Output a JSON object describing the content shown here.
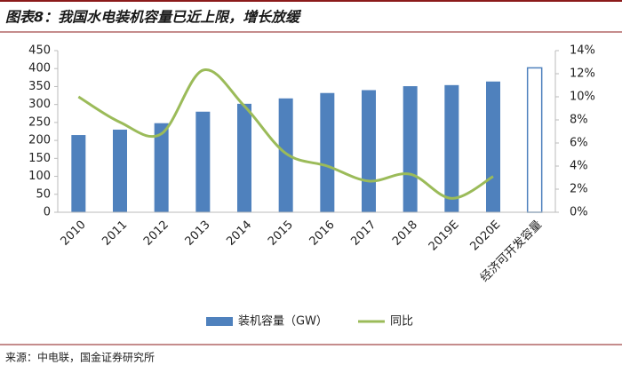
{
  "chart_data": {
    "type": "bar_line",
    "title": "图表8：我国水电装机容量已近上限，增长放缓",
    "source": "来源：中电联，国金证券研究所",
    "categories": [
      "2010",
      "2011",
      "2012",
      "2013",
      "2014",
      "2015",
      "2016",
      "2017",
      "2018",
      "2019E",
      "2020E",
      "经济可开发容量"
    ],
    "series": [
      {
        "name": "装机容量（GW）",
        "type": "bar",
        "color": "#4f81bd",
        "hollow": [
          false,
          false,
          false,
          false,
          false,
          false,
          false,
          false,
          false,
          false,
          false,
          true
        ],
        "values": [
          215,
          230,
          248,
          280,
          302,
          317,
          332,
          340,
          351,
          354,
          364,
          402
        ]
      },
      {
        "name": "同比",
        "type": "line",
        "axis": "y2",
        "color": "#9bbb59",
        "values": [
          10.0,
          7.8,
          6.8,
          12.3,
          9.2,
          5.1,
          4.0,
          2.7,
          3.3,
          1.2,
          3.1,
          null
        ]
      }
    ],
    "ylim": [
      0,
      450
    ],
    "yticks": [
      0,
      50,
      100,
      150,
      200,
      250,
      300,
      350,
      400,
      450
    ],
    "y2lim": [
      0,
      14
    ],
    "y2ticks": [
      {
        "value": 0,
        "label": "0%"
      },
      {
        "value": 2,
        "label": "2%"
      },
      {
        "value": 4,
        "label": "4%"
      },
      {
        "value": 6,
        "label": "6%"
      },
      {
        "value": 8,
        "label": "8%"
      },
      {
        "value": 10,
        "label": "10%"
      },
      {
        "value": 12,
        "label": "12%"
      },
      {
        "value": 14,
        "label": "14%"
      }
    ],
    "legend": "bottom",
    "grid": false
  }
}
